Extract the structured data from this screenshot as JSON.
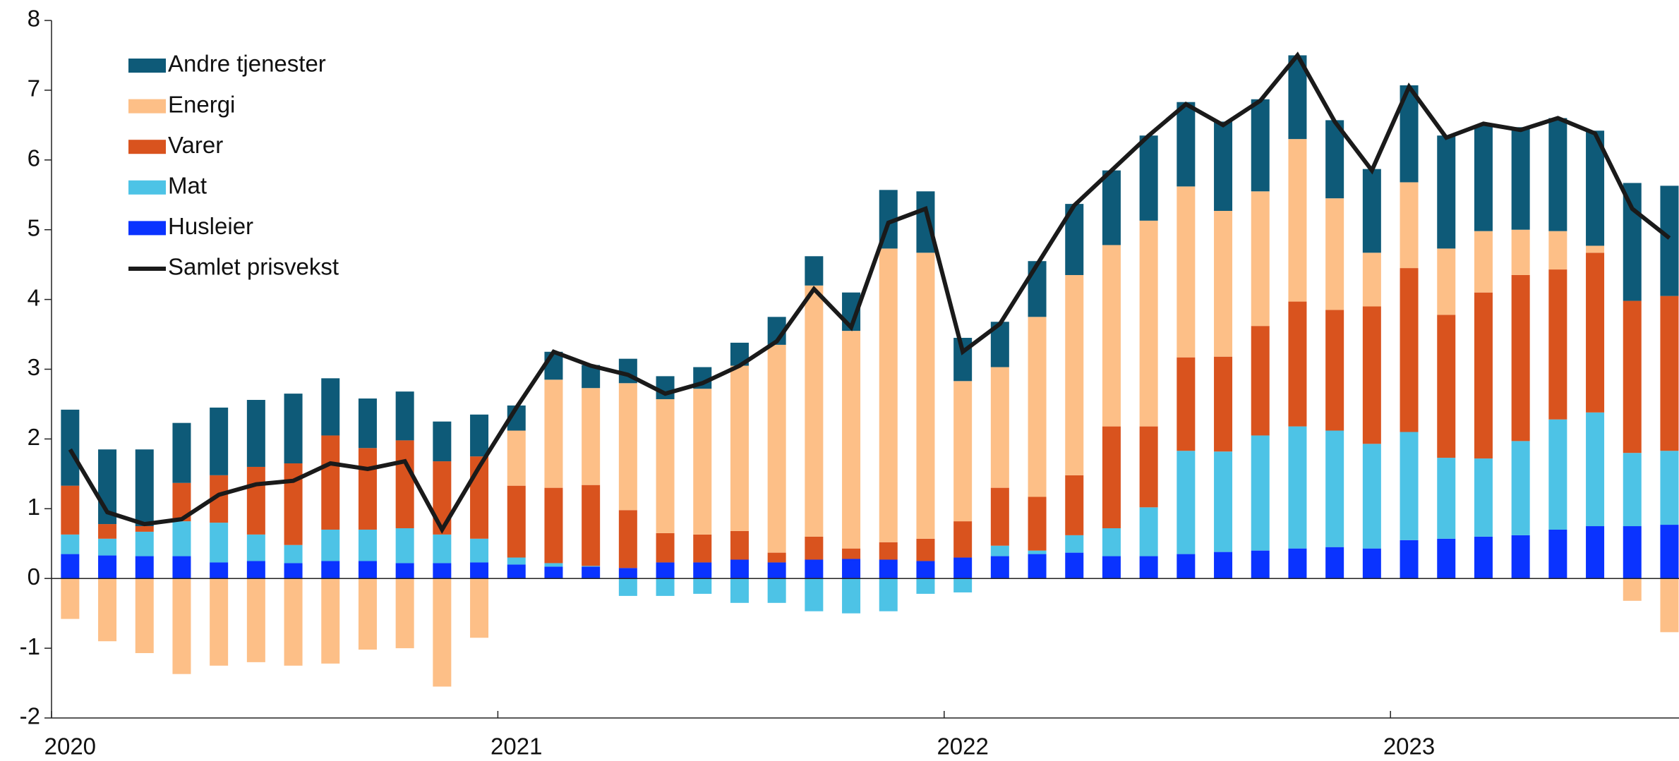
{
  "chart_data": {
    "type": "bar",
    "stacked": true,
    "categories": [
      "2020",
      null,
      null,
      null,
      null,
      null,
      null,
      null,
      null,
      null,
      null,
      null,
      "2021",
      null,
      null,
      null,
      null,
      null,
      null,
      null,
      null,
      null,
      null,
      null,
      "2022",
      null,
      null,
      null,
      null,
      null,
      null,
      null,
      null,
      null,
      null,
      null,
      "2023",
      null,
      null,
      null,
      null,
      null,
      null,
      null
    ],
    "ylim": [
      -2,
      8
    ],
    "yticks": [
      -2,
      -1,
      0,
      1,
      2,
      3,
      4,
      5,
      6,
      7,
      8
    ],
    "legend": "upper left",
    "series": [
      {
        "name": "Husleier",
        "color": "#0a33ff",
        "values": [
          0.35,
          0.33,
          0.32,
          0.32,
          0.23,
          0.25,
          0.22,
          0.25,
          0.25,
          0.22,
          0.22,
          0.23,
          0.2,
          0.17,
          0.17,
          0.15,
          0.23,
          0.23,
          0.27,
          0.23,
          0.27,
          0.28,
          0.27,
          0.25,
          0.3,
          0.32,
          0.35,
          0.37,
          0.32,
          0.32,
          0.35,
          0.38,
          0.4,
          0.43,
          0.45,
          0.43,
          0.55,
          0.57,
          0.6,
          0.62,
          0.7,
          0.75,
          0.75,
          0.77
        ]
      },
      {
        "name": "Mat",
        "color": "#4dc3e6",
        "values": [
          0.28,
          0.24,
          0.35,
          0.5,
          0.57,
          0.38,
          0.26,
          0.45,
          0.45,
          0.5,
          0.41,
          0.34,
          0.1,
          0.05,
          0.01,
          -0.25,
          -0.25,
          -0.22,
          -0.35,
          -0.35,
          -0.47,
          -0.5,
          -0.47,
          -0.22,
          -0.2,
          0.15,
          0.05,
          0.25,
          0.4,
          0.7,
          1.48,
          1.44,
          1.65,
          1.75,
          1.67,
          1.5,
          1.55,
          1.16,
          1.12,
          1.35,
          1.58,
          1.63,
          1.05,
          1.06
        ]
      },
      {
        "name": "Varer",
        "color": "#d9531e",
        "values": [
          0.7,
          0.21,
          0.08,
          0.55,
          0.68,
          0.97,
          1.17,
          1.35,
          1.17,
          1.26,
          1.05,
          1.18,
          1.03,
          1.08,
          1.16,
          0.83,
          0.42,
          0.4,
          0.41,
          0.14,
          0.33,
          0.15,
          0.25,
          0.32,
          0.52,
          0.83,
          0.77,
          0.86,
          1.46,
          1.16,
          1.34,
          1.36,
          1.57,
          1.79,
          1.73,
          1.97,
          2.35,
          2.05,
          2.38,
          2.38,
          2.15,
          2.29,
          2.18,
          2.22
        ]
      },
      {
        "name": "Energi",
        "color": "#fdbf87",
        "values": [
          -0.58,
          -0.9,
          -1.07,
          -1.37,
          -1.25,
          -1.2,
          -1.25,
          -1.22,
          -1.02,
          -1.0,
          -1.55,
          -0.85,
          0.79,
          1.55,
          1.39,
          1.82,
          1.92,
          2.09,
          2.37,
          2.98,
          3.6,
          3.12,
          4.21,
          4.1,
          2.01,
          1.73,
          2.58,
          2.87,
          2.6,
          2.95,
          2.45,
          2.09,
          1.93,
          2.33,
          1.6,
          0.77,
          1.23,
          0.95,
          0.88,
          0.65,
          0.55,
          0.1,
          -0.32,
          -0.77
        ]
      },
      {
        "name": "Andre tjenester",
        "color": "#0e5a78",
        "values": [
          1.09,
          1.07,
          1.1,
          0.86,
          0.97,
          0.96,
          1.0,
          0.82,
          0.71,
          0.7,
          0.57,
          0.6,
          0.36,
          0.4,
          0.33,
          0.35,
          0.33,
          0.31,
          0.33,
          0.4,
          0.42,
          0.55,
          0.84,
          0.88,
          0.62,
          0.65,
          0.8,
          1.02,
          1.07,
          1.22,
          1.21,
          1.28,
          1.32,
          1.2,
          1.12,
          1.2,
          1.39,
          1.62,
          1.52,
          1.47,
          1.62,
          1.65,
          1.69,
          1.58
        ]
      },
      {
        "name": "Samlet prisvekst",
        "type": "line",
        "color": "#1a1a1a",
        "values": [
          1.85,
          0.95,
          0.78,
          0.85,
          1.2,
          1.35,
          1.4,
          1.65,
          1.57,
          1.68,
          0.7,
          1.6,
          2.45,
          3.25,
          3.05,
          2.92,
          2.65,
          2.8,
          3.05,
          3.4,
          4.15,
          3.6,
          5.1,
          5.3,
          3.25,
          3.65,
          4.5,
          5.35,
          5.85,
          6.35,
          6.8,
          6.5,
          6.85,
          7.5,
          6.55,
          5.85,
          7.05,
          6.32,
          6.52,
          6.43,
          6.6,
          6.38,
          5.3,
          4.88
        ]
      }
    ]
  }
}
